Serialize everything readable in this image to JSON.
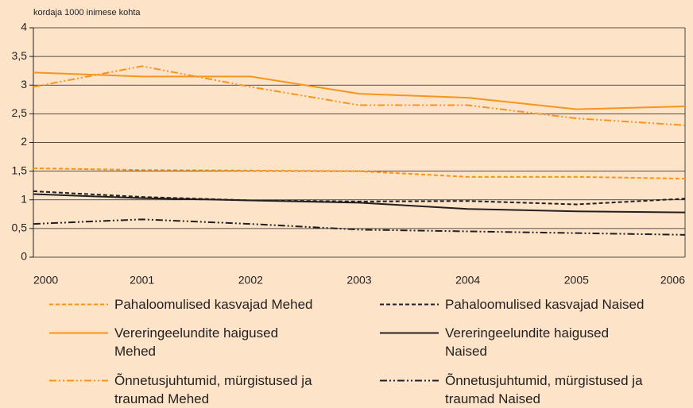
{
  "chart_data": {
    "type": "line",
    "y_label": "kordaja 1000 inimese kohta",
    "x": [
      2000,
      2001,
      2002,
      2003,
      2004,
      2005,
      2006
    ],
    "xlim": [
      2000,
      2006
    ],
    "xticks": [
      2000,
      2001,
      2002,
      2003,
      2004,
      2005,
      2006
    ],
    "ylim": [
      0,
      4
    ],
    "yticks": [
      0,
      {
        "value": 0.5,
        "label": "0,5"
      },
      1,
      {
        "value": 1.5,
        "label": "1,5"
      },
      2,
      {
        "value": 2.5,
        "label": "2,5"
      },
      3,
      {
        "value": 3.5,
        "label": "3,5"
      },
      4
    ],
    "grid": true,
    "series": [
      {
        "name": "Pahaloomulised kasvajad Mehed",
        "color": "#f7941d",
        "dash": "dashed",
        "values": [
          1.55,
          1.52,
          1.51,
          1.5,
          1.4,
          1.4,
          1.37
        ]
      },
      {
        "name": "Pahaloomulised kasvajad Naised",
        "color": "#231f20",
        "dash": "dashed",
        "values": [
          1.15,
          1.05,
          0.99,
          0.97,
          0.98,
          0.92,
          1.02
        ]
      },
      {
        "name": "Vereringeelundite haigused Mehed",
        "color": "#f7941d",
        "dash": "solid",
        "values": [
          3.22,
          3.15,
          3.15,
          2.85,
          2.78,
          2.58,
          2.63
        ]
      },
      {
        "name": "Vereringeelundite haigused Naised",
        "color": "#231f20",
        "dash": "solid",
        "values": [
          1.1,
          1.03,
          0.99,
          0.95,
          0.84,
          0.8,
          0.78
        ]
      },
      {
        "name": "Õnnetusjuhtumid, mürgistused ja traumad Mehed",
        "color": "#f7941d",
        "dash": "dashdot",
        "values": [
          2.97,
          3.33,
          2.97,
          2.65,
          2.65,
          2.42,
          2.3
        ]
      },
      {
        "name": "Õnnetusjuhtumid, mürgistused ja traumad Naised",
        "color": "#231f20",
        "dash": "dashdot",
        "values": [
          0.58,
          0.66,
          0.58,
          0.48,
          0.45,
          0.42,
          0.39
        ]
      }
    ]
  }
}
